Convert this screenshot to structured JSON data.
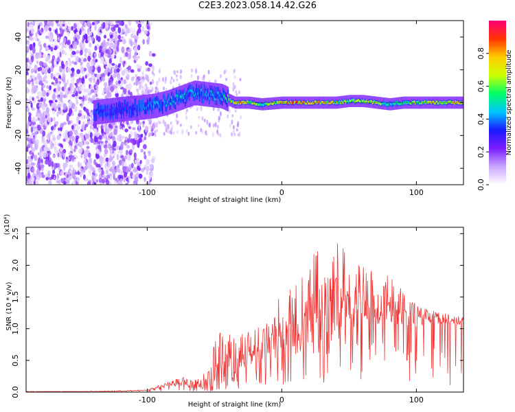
{
  "title": "C2E3.2023.058.14.42.G26",
  "chart_data": [
    {
      "type": "heatmap",
      "xlabel": "Height of straight line (km)",
      "ylabel": "Frequency (Hz)",
      "xlim": [
        -190,
        135
      ],
      "ylim": [
        -50,
        50
      ],
      "xticks": [
        -100,
        0,
        100
      ],
      "yticks": [
        -40,
        -20,
        0,
        20,
        40
      ],
      "colorbar": {
        "label": "Normalized spectral amplitude",
        "range": [
          0.0,
          1.0
        ],
        "ticks": [
          0.0,
          0.2,
          0.4,
          0.6,
          0.8
        ],
        "colormap": [
          "#ffffff",
          "#c9a6ff",
          "#7a1cff",
          "#1a1aff",
          "#00c8ff",
          "#00ff66",
          "#ccff00",
          "#ffcc00",
          "#ff3300",
          "#ff007a"
        ]
      },
      "ridge": [
        {
          "height": -140,
          "freq": -6,
          "amp": 0.35
        },
        {
          "height": -120,
          "freq": -4,
          "amp": 0.3
        },
        {
          "height": -105,
          "freq": -3,
          "amp": 0.4
        },
        {
          "height": -95,
          "freq": -2,
          "amp": 0.45
        },
        {
          "height": -85,
          "freq": 0,
          "amp": 0.5
        },
        {
          "height": -75,
          "freq": 3,
          "amp": 0.5
        },
        {
          "height": -65,
          "freq": 6,
          "amp": 0.45
        },
        {
          "height": -55,
          "freq": 5,
          "amp": 0.5
        },
        {
          "height": -45,
          "freq": 4,
          "amp": 0.5
        },
        {
          "height": -35,
          "freq": 0,
          "amp": 0.8
        },
        {
          "height": -25,
          "freq": 0,
          "amp": 0.75
        },
        {
          "height": -15,
          "freq": -1,
          "amp": 0.6
        },
        {
          "height": 0,
          "freq": 0,
          "amp": 0.8
        },
        {
          "height": 10,
          "freq": 0,
          "amp": 0.9
        },
        {
          "height": 20,
          "freq": 0,
          "amp": 0.85
        },
        {
          "height": 30,
          "freq": 0,
          "amp": 0.8
        },
        {
          "height": 40,
          "freq": 0,
          "amp": 0.75
        },
        {
          "height": 50,
          "freq": 1,
          "amp": 0.7
        },
        {
          "height": 60,
          "freq": 1,
          "amp": 0.75
        },
        {
          "height": 70,
          "freq": 0,
          "amp": 0.7
        },
        {
          "height": 80,
          "freq": -1,
          "amp": 0.55
        },
        {
          "height": 90,
          "freq": 0,
          "amp": 0.6
        },
        {
          "height": 100,
          "freq": 0,
          "amp": 0.7
        },
        {
          "height": 110,
          "freq": 0,
          "amp": 0.75
        },
        {
          "height": 125,
          "freq": 0,
          "amp": 0.8
        },
        {
          "height": 135,
          "freq": 0,
          "amp": 0.85
        }
      ]
    },
    {
      "type": "line",
      "xlabel": "Height of straight line (km)",
      "ylabel": "SNR (10 * v/v)",
      "ymultiplier": "(x10⁴)",
      "xlim": [
        -190,
        135
      ],
      "ylim": [
        0,
        2.6
      ],
      "xticks": [
        -100,
        0,
        100
      ],
      "yticks": [
        0.0,
        0.5,
        1.0,
        1.5,
        2.0,
        2.5
      ],
      "series": [
        {
          "color": "#ee3333",
          "x": [
            -190,
            -170,
            -150,
            -130,
            -110,
            -100,
            -90,
            -80,
            -70,
            -60,
            -50,
            -40,
            -30,
            -20,
            -10,
            0,
            10,
            20,
            30,
            40,
            50,
            60,
            70,
            80,
            90,
            100,
            110,
            120,
            135
          ],
          "y": [
            0.01,
            0.01,
            0.01,
            0.01,
            0.02,
            0.03,
            0.08,
            0.12,
            0.16,
            0.1,
            0.2,
            0.35,
            0.55,
            0.62,
            0.7,
            0.85,
            0.95,
            1.1,
            1.25,
            1.3,
            1.35,
            1.35,
            1.3,
            1.3,
            1.2,
            1.15,
            1.15,
            1.12,
            1.1
          ],
          "envelope": [
            0.01,
            0.01,
            0.01,
            0.02,
            0.03,
            0.04,
            0.12,
            0.2,
            0.28,
            0.2,
            0.9,
            1.0,
            0.95,
            1.0,
            1.1,
            1.6,
            1.75,
            2.0,
            2.6,
            2.5,
            2.1,
            2.1,
            1.9,
            1.85,
            1.6,
            1.4,
            1.3,
            1.25,
            1.2
          ]
        }
      ]
    }
  ]
}
